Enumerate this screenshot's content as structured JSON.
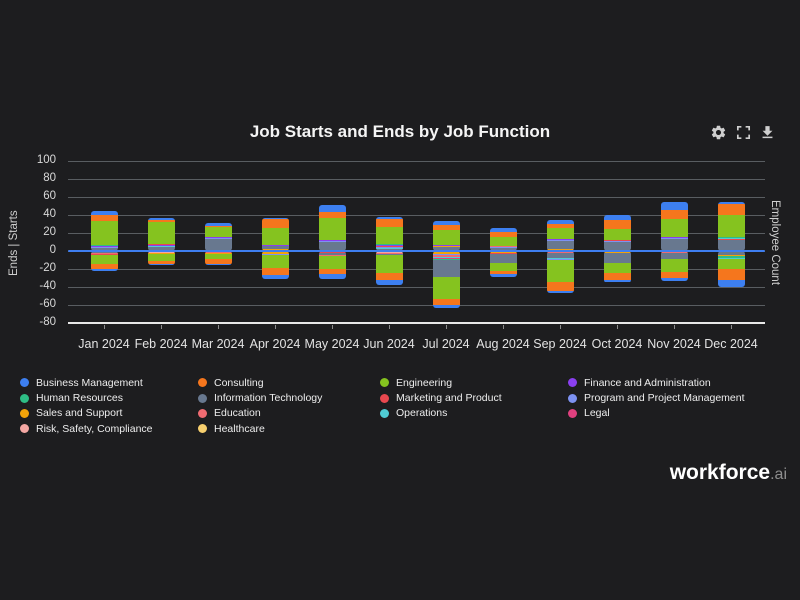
{
  "title": "Job Starts and Ends by Job Function",
  "toolbar": {
    "icons": [
      "settings",
      "fullscreen",
      "download"
    ]
  },
  "branding": {
    "name": "workforce",
    "suffix": ".ai"
  },
  "chart_data": {
    "type": "bar",
    "stacked": true,
    "diverging": true,
    "title": "Job Starts and Ends by Job Function",
    "ylabel_left": "Ends | Starts",
    "ylabel_right": "Employee Count",
    "ylim": [
      -80,
      100
    ],
    "ytick_step": 20,
    "grid": true,
    "legend_position": "bottom",
    "zero_line_color": "#3e7ef0",
    "background_color": "#1d1d1f",
    "categories": [
      "Jan 2024",
      "Feb 2024",
      "Mar 2024",
      "Apr 2024",
      "May 2024",
      "Jun 2024",
      "Jul 2024",
      "Aug 2024",
      "Sep 2024",
      "Oct 2024",
      "Nov 2024",
      "Dec 2024"
    ],
    "functions": [
      {
        "name": "Business Management",
        "color": "#3d7ff0"
      },
      {
        "name": "Consulting",
        "color": "#f5761d"
      },
      {
        "name": "Engineering",
        "color": "#85c31f"
      },
      {
        "name": "Finance and Administration",
        "color": "#8a3ff0"
      },
      {
        "name": "Human Resources",
        "color": "#2ebd85"
      },
      {
        "name": "Information Technology",
        "color": "#68788f"
      },
      {
        "name": "Marketing and Product",
        "color": "#e8484f"
      },
      {
        "name": "Program and Project Management",
        "color": "#7d92f2"
      },
      {
        "name": "Sales and Support",
        "color": "#f2a30a"
      },
      {
        "name": "Education",
        "color": "#f06b72"
      },
      {
        "name": "Operations",
        "color": "#4fccd4"
      },
      {
        "name": "Legal",
        "color": "#e0407f"
      },
      {
        "name": "Risk, Safety, Compliance",
        "color": "#f4a7a3"
      },
      {
        "name": "Healthcare",
        "color": "#f7cf6e"
      }
    ],
    "months": [
      {
        "label": "Jan 2024",
        "starts_total": 44,
        "ends_total": -22,
        "starts": [
          [
            5,
            3
          ],
          [
            7,
            1
          ],
          [
            3,
            1
          ],
          [
            6,
            1
          ],
          [
            4,
            1
          ],
          [
            2,
            26
          ],
          [
            1,
            7
          ],
          [
            0,
            4
          ]
        ],
        "ends": [
          [
            5,
            2
          ],
          [
            9,
            1
          ],
          [
            6,
            1
          ],
          [
            2,
            11
          ],
          [
            1,
            5
          ],
          [
            0,
            2
          ]
        ]
      },
      {
        "label": "Feb 2024",
        "starts_total": 37,
        "ends_total": -16,
        "starts": [
          [
            5,
            4
          ],
          [
            10,
            1
          ],
          [
            7,
            1
          ],
          [
            3,
            1
          ],
          [
            6,
            1
          ],
          [
            2,
            24
          ],
          [
            1,
            2
          ],
          [
            0,
            3
          ]
        ],
        "ends": [
          [
            9,
            1
          ],
          [
            12,
            1
          ],
          [
            8,
            1
          ],
          [
            2,
            8
          ],
          [
            1,
            3
          ],
          [
            0,
            2
          ]
        ]
      },
      {
        "label": "Mar 2024",
        "starts_total": 31,
        "ends_total": -16,
        "starts": [
          [
            5,
            13
          ],
          [
            7,
            1
          ],
          [
            3,
            1
          ],
          [
            2,
            12
          ],
          [
            1,
            1
          ],
          [
            0,
            3
          ]
        ],
        "ends": [
          [
            6,
            1
          ],
          [
            9,
            1
          ],
          [
            8,
            1
          ],
          [
            2,
            6
          ],
          [
            1,
            5
          ],
          [
            0,
            2
          ]
        ]
      },
      {
        "label": "Apr 2024",
        "starts_total": 37,
        "ends_total": -31,
        "starts": [
          [
            8,
            2
          ],
          [
            5,
            3
          ],
          [
            7,
            1
          ],
          [
            3,
            1
          ],
          [
            2,
            19
          ],
          [
            1,
            10
          ],
          [
            0,
            1
          ]
        ],
        "ends": [
          [
            3,
            1
          ],
          [
            8,
            2
          ],
          [
            7,
            1
          ],
          [
            6,
            1
          ],
          [
            2,
            14
          ],
          [
            1,
            8
          ],
          [
            0,
            4
          ]
        ]
      },
      {
        "label": "May 2024",
        "starts_total": 51,
        "ends_total": -31,
        "starts": [
          [
            5,
            10
          ],
          [
            7,
            1
          ],
          [
            3,
            1
          ],
          [
            2,
            25
          ],
          [
            1,
            6
          ],
          [
            0,
            8
          ]
        ],
        "ends": [
          [
            8,
            1
          ],
          [
            6,
            1
          ],
          [
            5,
            3
          ],
          [
            9,
            1
          ],
          [
            2,
            14
          ],
          [
            1,
            6
          ],
          [
            0,
            5
          ]
        ]
      },
      {
        "label": "Jun 2024",
        "starts_total": 38,
        "ends_total": -38,
        "starts": [
          [
            5,
            2
          ],
          [
            10,
            1
          ],
          [
            7,
            1
          ],
          [
            6,
            1
          ],
          [
            9,
            1
          ],
          [
            3,
            1
          ],
          [
            4,
            1
          ],
          [
            2,
            19
          ],
          [
            1,
            8
          ],
          [
            0,
            3
          ]
        ],
        "ends": [
          [
            6,
            1
          ],
          [
            12,
            1
          ],
          [
            9,
            1
          ],
          [
            5,
            2
          ],
          [
            2,
            20
          ],
          [
            1,
            7
          ],
          [
            0,
            6
          ]
        ]
      },
      {
        "label": "Jul 2024",
        "starts_total": 33,
        "ends_total": -63,
        "starts": [
          [
            5,
            4
          ],
          [
            8,
            1
          ],
          [
            7,
            1
          ],
          [
            3,
            1
          ],
          [
            2,
            16
          ],
          [
            1,
            6
          ],
          [
            0,
            4
          ]
        ],
        "ends": [
          [
            12,
            1
          ],
          [
            8,
            2
          ],
          [
            7,
            1
          ],
          [
            6,
            1
          ],
          [
            9,
            2
          ],
          [
            10,
            1
          ],
          [
            11,
            1
          ],
          [
            4,
            1
          ],
          [
            5,
            19
          ],
          [
            2,
            24
          ],
          [
            1,
            7
          ],
          [
            0,
            3
          ]
        ]
      },
      {
        "label": "Aug 2024",
        "starts_total": 26,
        "ends_total": -29,
        "starts": [
          [
            5,
            3
          ],
          [
            7,
            1
          ],
          [
            9,
            1
          ],
          [
            3,
            1
          ],
          [
            2,
            10
          ],
          [
            1,
            5
          ],
          [
            0,
            5
          ]
        ],
        "ends": [
          [
            8,
            2
          ],
          [
            6,
            1
          ],
          [
            5,
            10
          ],
          [
            2,
            9
          ],
          [
            1,
            4
          ],
          [
            0,
            3
          ]
        ]
      },
      {
        "label": "Sep 2024",
        "starts_total": 35,
        "ends_total": -47,
        "starts": [
          [
            8,
            2
          ],
          [
            5,
            9
          ],
          [
            7,
            1
          ],
          [
            3,
            1
          ],
          [
            2,
            13
          ],
          [
            1,
            4
          ],
          [
            0,
            5
          ]
        ],
        "ends": [
          [
            6,
            1
          ],
          [
            9,
            1
          ],
          [
            5,
            6
          ],
          [
            10,
            1
          ],
          [
            7,
            1
          ],
          [
            2,
            24
          ],
          [
            1,
            10
          ],
          [
            0,
            3
          ]
        ]
      },
      {
        "label": "Oct 2024",
        "starts_total": 40,
        "ends_total": -35,
        "starts": [
          [
            5,
            10
          ],
          [
            7,
            1
          ],
          [
            6,
            1
          ],
          [
            2,
            13
          ],
          [
            1,
            10
          ],
          [
            0,
            5
          ]
        ],
        "ends": [
          [
            9,
            1
          ],
          [
            8,
            1
          ],
          [
            5,
            11
          ],
          [
            2,
            12
          ],
          [
            1,
            7
          ],
          [
            0,
            3
          ]
        ]
      },
      {
        "label": "Nov 2024",
        "starts_total": 54,
        "ends_total": -33,
        "starts": [
          [
            5,
            13
          ],
          [
            7,
            1
          ],
          [
            3,
            1
          ],
          [
            2,
            21
          ],
          [
            1,
            10
          ],
          [
            0,
            8
          ]
        ],
        "ends": [
          [
            6,
            1
          ],
          [
            9,
            1
          ],
          [
            5,
            7
          ],
          [
            2,
            14
          ],
          [
            1,
            7
          ],
          [
            0,
            3
          ]
        ]
      },
      {
        "label": "Dec 2024",
        "starts_total": 54,
        "ends_total": -40,
        "starts": [
          [
            5,
            12
          ],
          [
            6,
            1
          ],
          [
            10,
            1
          ],
          [
            4,
            1
          ],
          [
            7,
            1
          ],
          [
            2,
            24
          ],
          [
            1,
            12
          ],
          [
            0,
            2
          ]
        ],
        "ends": [
          [
            5,
            4
          ],
          [
            9,
            1
          ],
          [
            8,
            1
          ],
          [
            4,
            2
          ],
          [
            10,
            1
          ],
          [
            2,
            11
          ],
          [
            1,
            12
          ],
          [
            0,
            8
          ]
        ]
      }
    ]
  }
}
